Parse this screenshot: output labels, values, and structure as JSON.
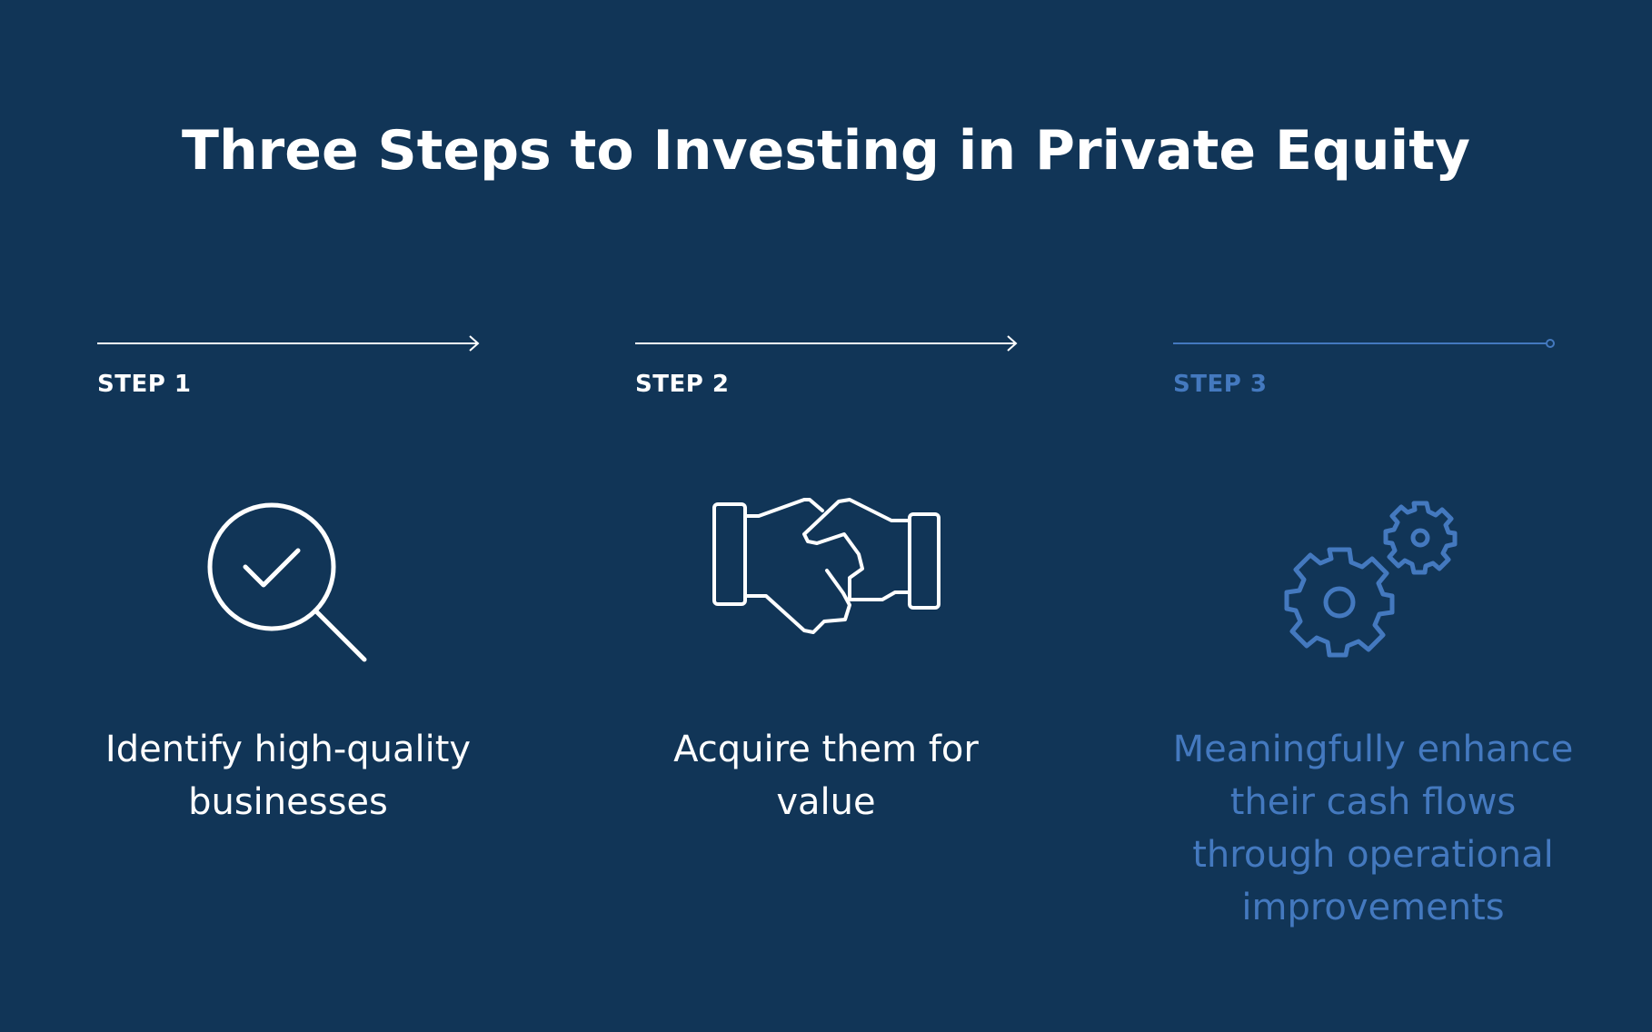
{
  "title": "Three Steps to Investing in Private Equity",
  "colors": {
    "background": "#113557",
    "white": "#ffffff",
    "accent": "#4479bf"
  },
  "steps": [
    {
      "label": "STEP 1",
      "icon": "magnifier-check-icon",
      "description_lines": [
        "Identify high-quality",
        "businesses"
      ],
      "connector": "arrow"
    },
    {
      "label": "STEP 2",
      "icon": "handshake-icon",
      "description_lines": [
        "Acquire them for value"
      ],
      "connector": "arrow"
    },
    {
      "label": "STEP 3",
      "icon": "gears-icon",
      "description_lines": [
        "Meaningfully enhance",
        "their cash flows",
        "through operational",
        "improvements"
      ],
      "connector": "dot-end"
    }
  ]
}
